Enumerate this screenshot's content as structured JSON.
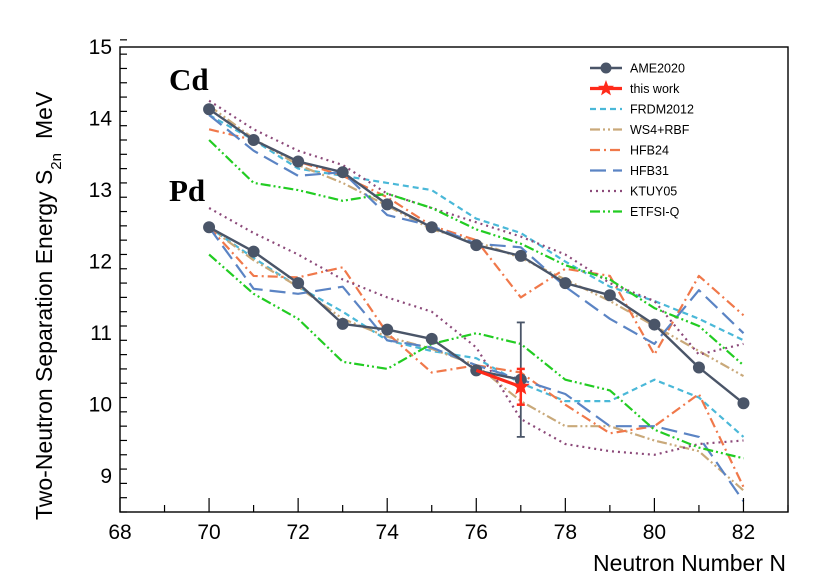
{
  "chart_data": {
    "type": "line",
    "xlabel": "Neutron Number N",
    "ylabel": "Two-Neutron Separation Energy S",
    "ylabel_subscript": "2n",
    "ylabel_unit": "MeV",
    "xlim": [
      68,
      83
    ],
    "ylim": [
      8.5,
      15
    ],
    "xticks": [
      68,
      70,
      72,
      74,
      76,
      78,
      80,
      82
    ],
    "yticks": [
      9,
      10,
      11,
      12,
      13,
      14,
      15
    ],
    "group_labels": [
      {
        "text": "Cd",
        "x": 69.1,
        "y": 14.4
      },
      {
        "text": "Pd",
        "x": 69.1,
        "y": 12.85
      }
    ],
    "legend_position": "top-right",
    "series": [
      {
        "name": "AME2020",
        "color": "#4a5568",
        "style": "solid-markers",
        "cd": {
          "x": [
            70,
            71,
            72,
            73,
            74,
            75,
            76,
            77,
            78,
            79,
            80,
            81,
            82
          ],
          "y": [
            14.13,
            13.7,
            13.4,
            13.25,
            12.8,
            12.48,
            12.23,
            12.08,
            11.7,
            11.53,
            11.12,
            10.52,
            10.02
          ]
        },
        "pd": {
          "x": [
            70,
            71,
            72,
            73,
            74,
            75,
            76,
            77
          ],
          "y": [
            12.48,
            12.14,
            11.7,
            11.13,
            11.05,
            10.92,
            10.48,
            10.35
          ]
        },
        "errorbar": {
          "x": 77,
          "y": 10.35,
          "yerr": 0.8
        }
      },
      {
        "name": "this work",
        "color": "#ff2a1a",
        "style": "star",
        "pd": {
          "x": [
            76,
            77
          ],
          "y": [
            10.48,
            10.25
          ]
        },
        "errorbar": {
          "x": 77,
          "y": 10.25,
          "yerr": 0.25
        }
      },
      {
        "name": "FRDM2012",
        "color": "#4ab8d8",
        "style": "dashed",
        "cd": {
          "x": [
            70,
            71,
            72,
            73,
            74,
            75,
            76,
            77,
            78,
            79,
            80,
            81,
            82
          ],
          "y": [
            14.05,
            13.7,
            13.3,
            13.2,
            13.1,
            13.0,
            12.6,
            12.4,
            12.0,
            11.65,
            11.45,
            11.2,
            10.9
          ]
        },
        "pd": {
          "x": [
            70,
            71,
            72,
            73,
            74,
            75,
            76,
            77,
            78,
            79,
            80,
            81,
            82
          ],
          "y": [
            12.48,
            12.05,
            11.65,
            11.3,
            10.9,
            10.75,
            10.65,
            10.3,
            10.05,
            10.05,
            10.35,
            10.1,
            9.55
          ]
        }
      },
      {
        "name": "WS4+RBF",
        "color": "#c9a97a",
        "style": "dash-dot-dot",
        "cd": {
          "x": [
            70,
            71,
            72,
            73,
            74,
            75,
            76,
            77,
            78,
            79,
            80,
            81,
            82
          ],
          "y": [
            14.18,
            13.72,
            13.35,
            13.1,
            12.78,
            12.45,
            12.28,
            12.05,
            11.75,
            11.45,
            11.1,
            10.75,
            10.4
          ]
        },
        "pd": {
          "x": [
            70,
            71,
            72,
            73,
            74,
            75,
            76,
            77,
            78,
            79,
            80,
            81,
            82
          ],
          "y": [
            12.48,
            12.02,
            11.65,
            11.2,
            10.95,
            10.78,
            10.55,
            10.05,
            9.7,
            9.7,
            9.5,
            9.35,
            8.8
          ]
        }
      },
      {
        "name": "HFB24",
        "color": "#f0784a",
        "style": "dash-dot",
        "cd": {
          "x": [
            70,
            71,
            72,
            73,
            74,
            75,
            76,
            77,
            78,
            79,
            80,
            81,
            82
          ],
          "y": [
            13.85,
            13.7,
            13.4,
            13.2,
            12.9,
            12.5,
            12.3,
            11.5,
            11.9,
            11.8,
            10.7,
            11.8,
            11.25
          ]
        },
        "pd": {
          "x": [
            70,
            71,
            72,
            73,
            74,
            75,
            76,
            77,
            78,
            79,
            80,
            81,
            82
          ],
          "y": [
            12.48,
            11.8,
            11.78,
            11.92,
            11.0,
            10.45,
            10.55,
            10.45,
            10.0,
            9.6,
            9.7,
            10.15,
            8.85
          ]
        }
      },
      {
        "name": "HFB31",
        "color": "#5b84c4",
        "style": "long-dash",
        "cd": {
          "x": [
            70,
            71,
            72,
            73,
            74,
            75,
            76,
            77,
            78,
            79,
            80,
            81,
            82
          ],
          "y": [
            14.05,
            13.55,
            13.2,
            13.25,
            12.65,
            12.5,
            12.25,
            12.2,
            11.65,
            11.2,
            10.85,
            11.6,
            11.0
          ]
        },
        "pd": {
          "x": [
            70,
            71,
            72,
            73,
            74,
            75,
            76,
            77,
            78,
            79,
            80,
            81,
            82
          ],
          "y": [
            12.48,
            11.62,
            11.55,
            11.65,
            10.9,
            10.8,
            10.55,
            10.35,
            10.15,
            9.7,
            9.7,
            9.55,
            8.65
          ]
        }
      },
      {
        "name": "KTUY05",
        "color": "#8c4a7a",
        "style": "dotted",
        "cd": {
          "x": [
            70,
            71,
            72,
            73,
            74,
            75,
            76,
            77,
            78,
            79,
            80,
            81,
            82
          ],
          "y": [
            14.25,
            13.85,
            13.55,
            13.35,
            12.95,
            12.75,
            12.55,
            12.35,
            12.1,
            11.7,
            11.45,
            10.7,
            10.85
          ]
        },
        "pd": {
          "x": [
            70,
            71,
            72,
            73,
            74,
            75,
            76,
            77,
            78,
            79,
            80,
            81,
            82
          ],
          "y": [
            12.75,
            12.4,
            12.1,
            11.75,
            11.5,
            11.3,
            10.8,
            9.8,
            9.45,
            9.35,
            9.3,
            9.45,
            9.5
          ]
        }
      },
      {
        "name": "ETFSI-Q",
        "color": "#22cc22",
        "style": "dash-dot-dot",
        "cd": {
          "x": [
            70,
            71,
            72,
            73,
            74,
            75,
            76,
            77,
            78,
            79,
            80,
            81,
            82
          ],
          "y": [
            13.7,
            13.1,
            13.0,
            12.85,
            12.95,
            12.75,
            12.45,
            12.25,
            11.95,
            11.75,
            11.35,
            11.1,
            10.55
          ]
        },
        "pd": {
          "x": [
            70,
            71,
            72,
            73,
            74,
            75,
            76,
            77,
            78,
            79,
            80,
            81,
            82
          ],
          "y": [
            12.1,
            11.55,
            11.2,
            10.6,
            10.5,
            10.85,
            11.0,
            10.85,
            10.35,
            10.2,
            9.65,
            9.4,
            9.25
          ]
        }
      }
    ]
  }
}
